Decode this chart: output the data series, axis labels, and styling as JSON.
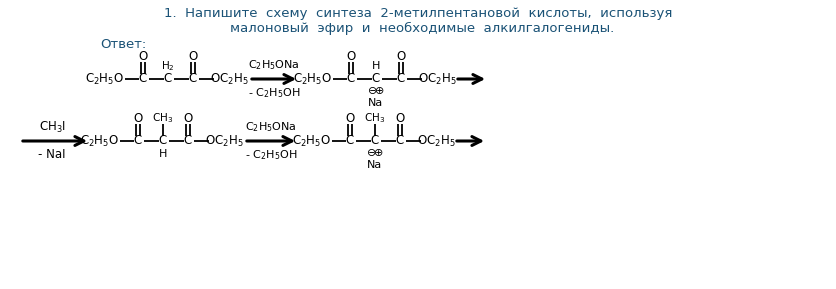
{
  "title_line1": "1.  Напишите  схему  синтеза  2-метилпентановой  кислоты,  используя",
  "title_line2": "малоновый  эфир  и  необходимые  алкилгалогениды.",
  "answer_label": "Ответ:",
  "bg_color": "#ffffff",
  "text_color": "#000000",
  "title_color": "#1a5276",
  "answer_color": "#1a5276",
  "fig_width": 8.37,
  "fig_height": 2.89,
  "dpi": 100
}
